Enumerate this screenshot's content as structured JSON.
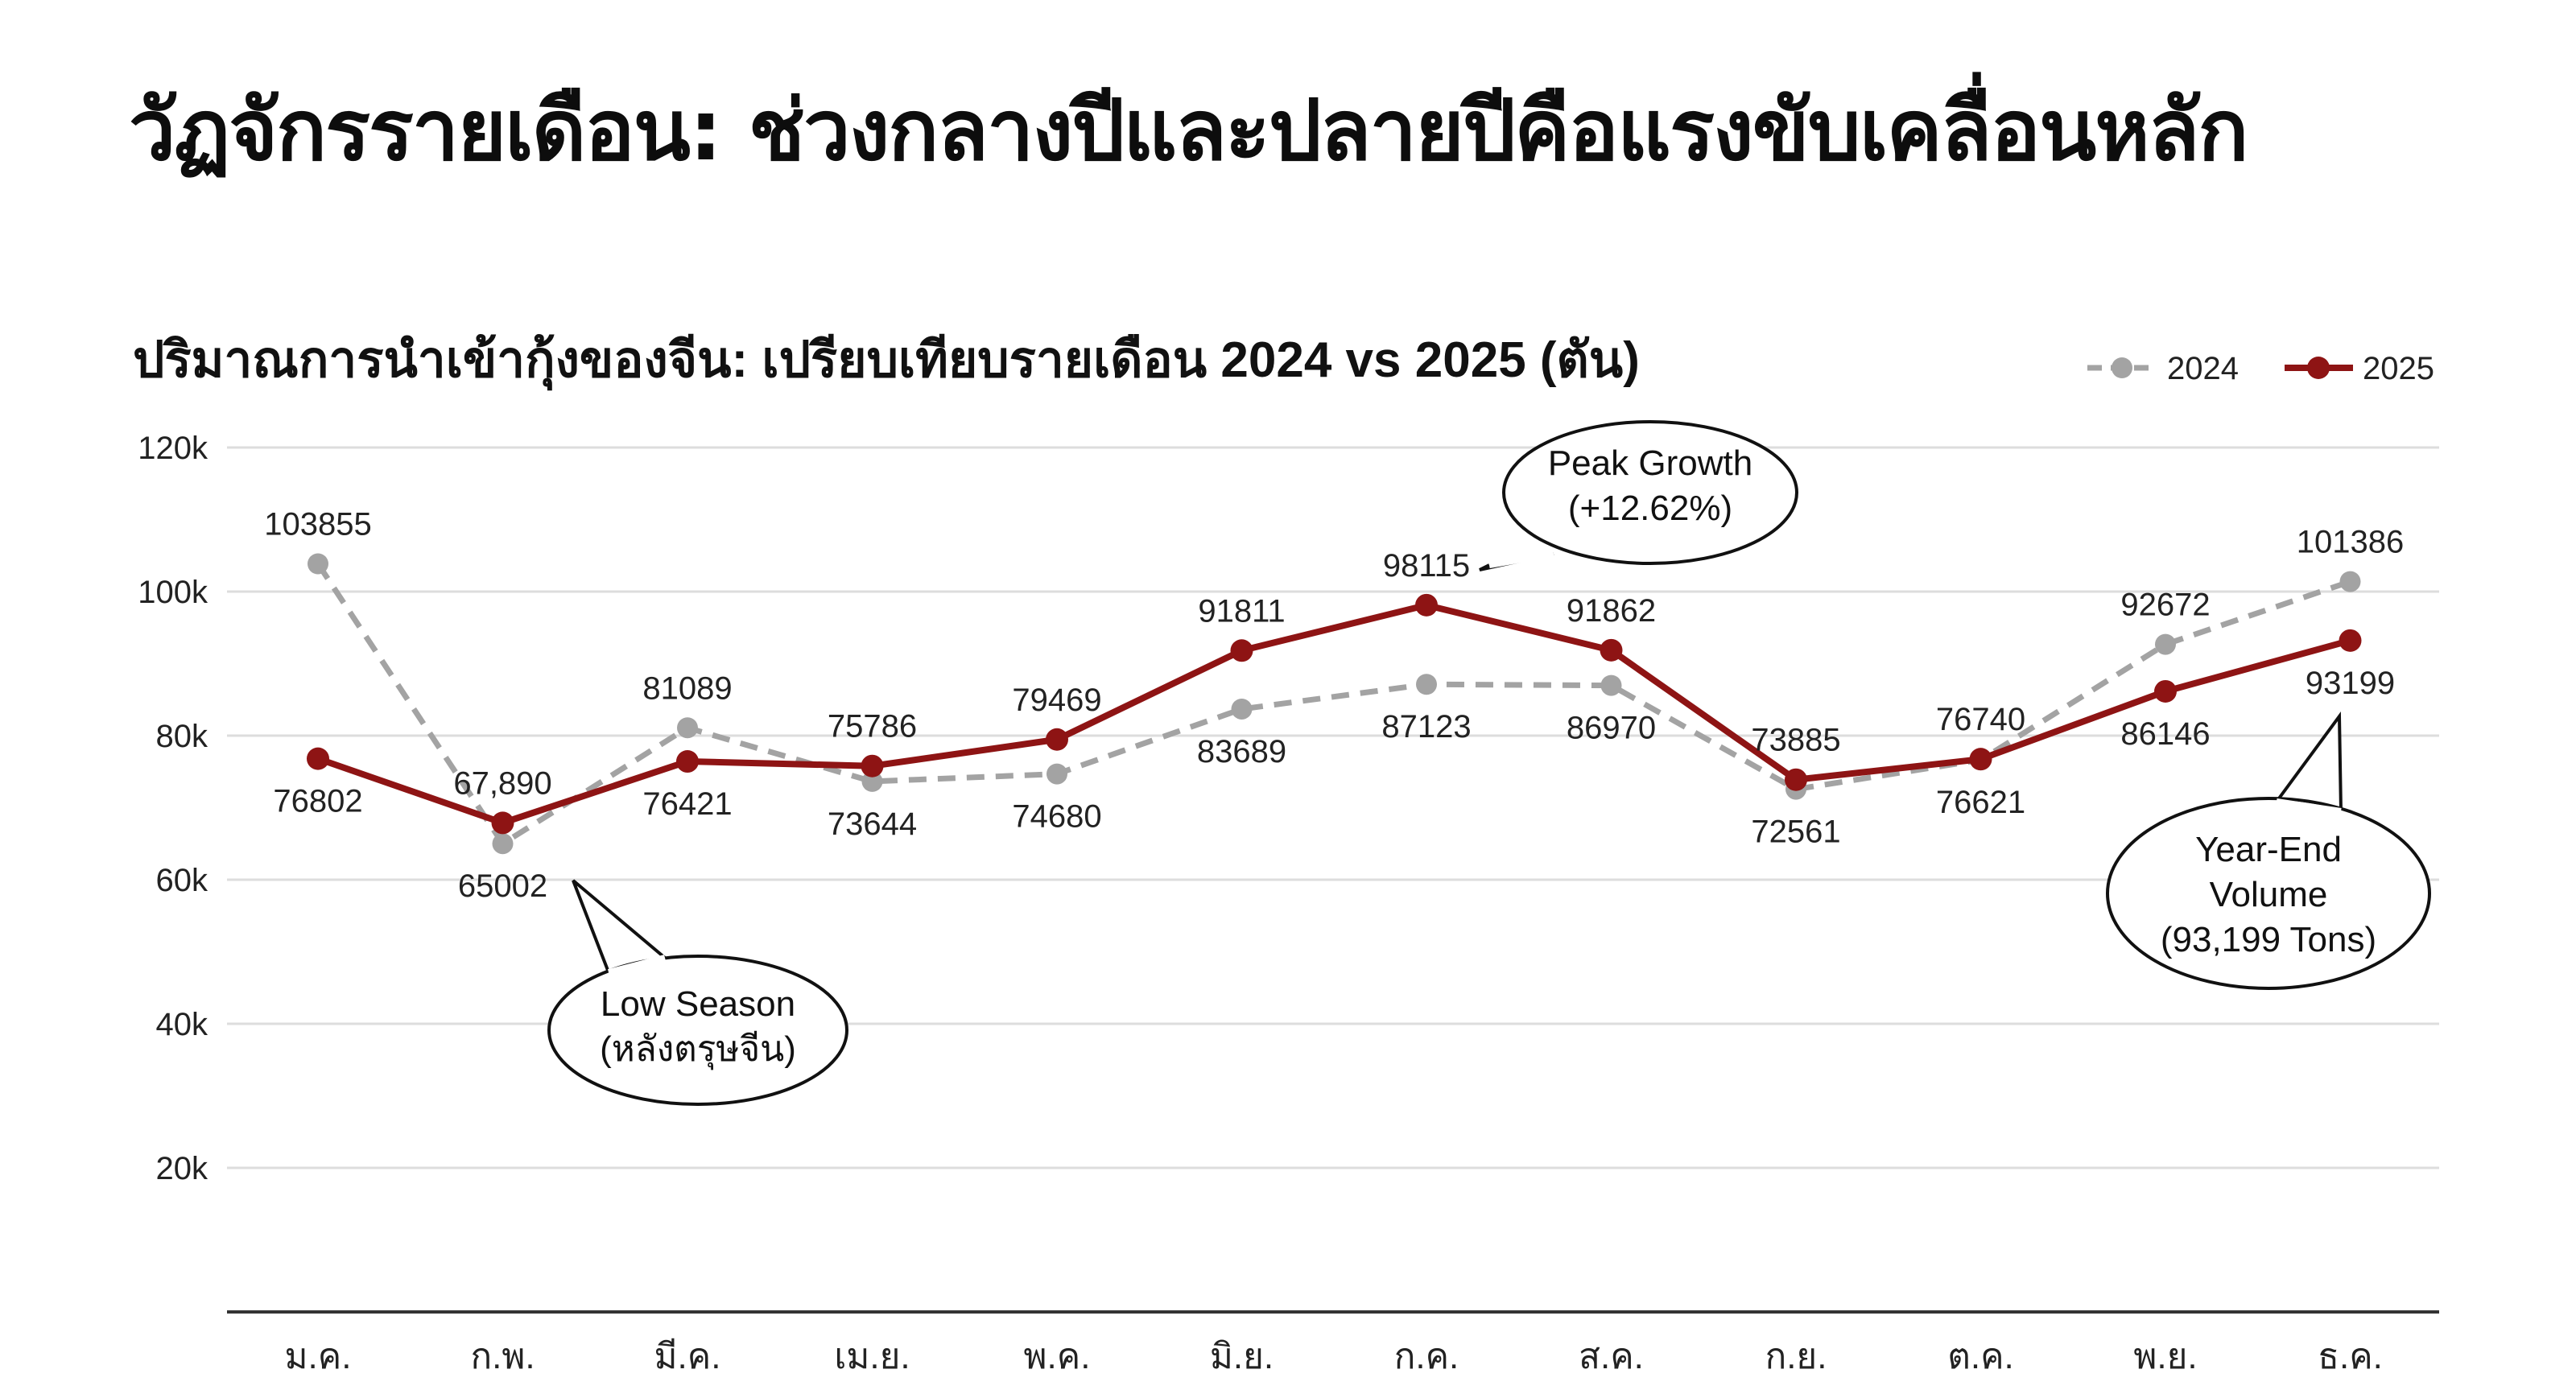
{
  "page_title": "วัฏจักรรายเดือน: ช่วงกลางปีและปลายปีคือแรงขับเคลื่อนหลัก",
  "colors": {
    "series_2024": "#a3a3a3",
    "series_2025": "#8e1414",
    "grid": "#dddddd",
    "axis": "#333333"
  },
  "chart_data": {
    "type": "line",
    "title": "ปริมาณการนำเข้ากุ้งของจีน: เปรียบเทียบรายเดือน 2024 vs 2025 (ตัน)",
    "xlabel": "",
    "ylabel": "",
    "categories": [
      "ม.ค.",
      "ก.พ.",
      "มี.ค.",
      "เม.ย.",
      "พ.ค.",
      "มิ.ย.",
      "ก.ค.",
      "ส.ค.",
      "ก.ย.",
      "ต.ค.",
      "พ.ย.",
      "ธ.ค."
    ],
    "ylim": [
      0,
      120000
    ],
    "yticks": [
      20000,
      40000,
      60000,
      80000,
      100000,
      120000
    ],
    "ytick_labels": [
      "20k",
      "40k",
      "60k",
      "80k",
      "100k",
      "120k"
    ],
    "grid": true,
    "legend": "top-right",
    "series": [
      {
        "name": "2024",
        "style": "dashed",
        "values": [
          103855,
          65002,
          81089,
          73644,
          74680,
          83689,
          87123,
          86970,
          72561,
          76621,
          92672,
          101386
        ],
        "labels": [
          "103855",
          "65002",
          "81089",
          "73644",
          "74680",
          "83689",
          "87123",
          "86970",
          "72561",
          "76621",
          "92672",
          "101386"
        ]
      },
      {
        "name": "2025",
        "style": "solid",
        "values": [
          76802,
          67890,
          76421,
          75786,
          79469,
          91811,
          98115,
          91862,
          73885,
          76740,
          86146,
          93199
        ],
        "labels": [
          "76802",
          "67,890",
          "76421",
          "75786",
          "79469",
          "91811",
          "98115",
          "91862",
          "73885",
          "76740",
          "86146",
          "93199"
        ]
      }
    ],
    "annotations": [
      {
        "lines": [
          "Peak Growth",
          "(+12.62%)"
        ],
        "category": "ก.ค.",
        "series": "2025"
      },
      {
        "lines": [
          "Low Season",
          "(หลังตรุษจีน)"
        ],
        "category": "ก.พ.",
        "series": "2025"
      },
      {
        "lines": [
          "Year-End",
          "Volume",
          "(93,199 Tons)"
        ],
        "category": "ธ.ค.",
        "series": "2025"
      }
    ]
  }
}
